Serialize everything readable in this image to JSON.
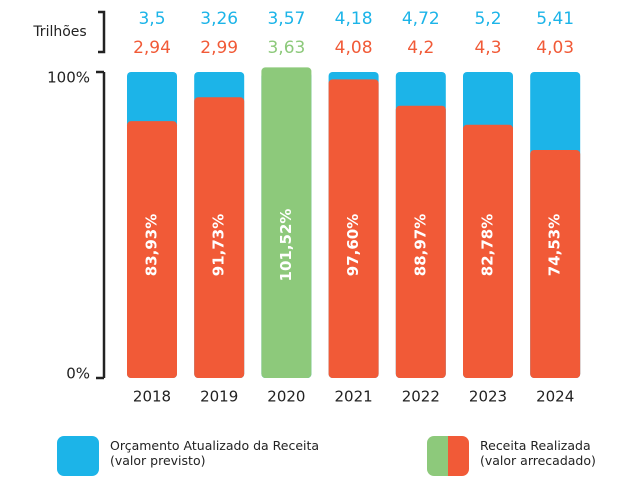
{
  "chart_data": {
    "type": "bar",
    "y_label": "Trilhões",
    "categories": [
      "2018",
      "2019",
      "2020",
      "2021",
      "2022",
      "2023",
      "2024"
    ],
    "series": [
      {
        "name": "Orçamento Atualizado da Receita\n(valor previsto)",
        "color": "#1cb4e8",
        "values": [
          3.5,
          3.26,
          3.57,
          4.18,
          4.72,
          5.2,
          5.41
        ],
        "value_labels": [
          "3,5",
          "3,26",
          "3,57",
          "4,18",
          "4,72",
          "5,2",
          "5,41"
        ]
      },
      {
        "name": "Receita Realizada\n(valor arrecadado)",
        "color": "#f15a37",
        "colors": [
          "#f15a37",
          "#f15a37",
          "#8dc97b",
          "#f15a37",
          "#f15a37",
          "#f15a37",
          "#f15a37"
        ],
        "values": [
          2.94,
          2.99,
          3.63,
          4.08,
          4.2,
          4.3,
          4.03
        ],
        "value_labels": [
          "2,94",
          "2,99",
          "3,63",
          "4,08",
          "4,2",
          "4,3",
          "4,03"
        ]
      }
    ],
    "percentages": [
      83.93,
      91.73,
      101.52,
      97.6,
      88.97,
      82.78,
      74.53
    ],
    "percentage_labels": [
      "83,93%",
      "91,73%",
      "101,52%",
      "97,60%",
      "88,97%",
      "82,78%",
      "74,53%"
    ],
    "ylim": [
      0,
      100
    ],
    "yticks": [
      {
        "value": 0,
        "label": "0%"
      },
      {
        "value": 100,
        "label": "100%"
      }
    ]
  }
}
